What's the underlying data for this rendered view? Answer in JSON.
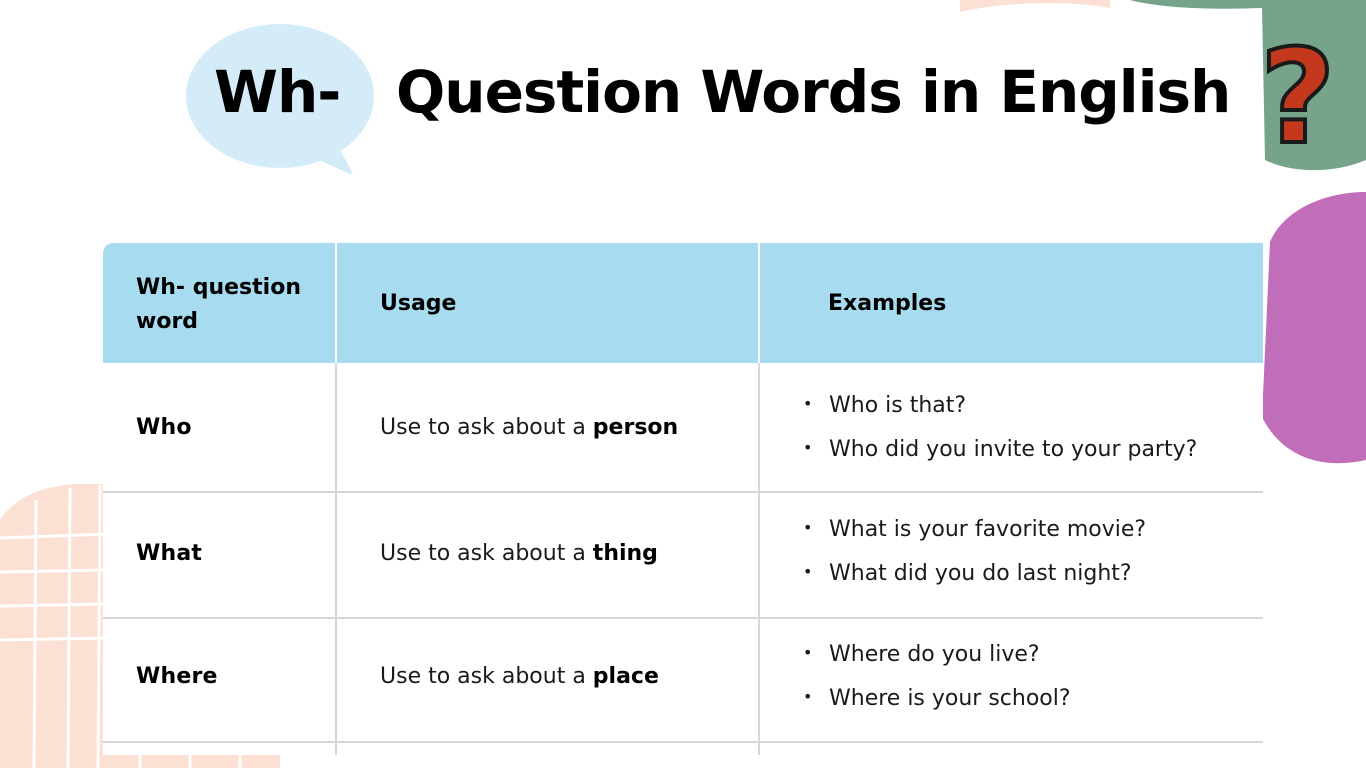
{
  "title": {
    "prefix": "Wh-",
    "main": "Question Words in English"
  },
  "decorations": {
    "question_mark": "?",
    "colors": {
      "bubble": "#d4ecf7",
      "green_blob": "#76a48a",
      "purple_blob": "#c06eba",
      "peach": "#fbe0d3",
      "question_mark": "#c4381e",
      "header": "#a7dcf0"
    }
  },
  "table": {
    "headers": {
      "word": "Wh- question word",
      "usage": "Usage",
      "examples": "Examples"
    },
    "rows": [
      {
        "word": "Who",
        "usage_prefix": "Use to ask about a ",
        "usage_keyword": "person",
        "examples": [
          "Who is that?",
          "Who did you invite to your party?"
        ]
      },
      {
        "word": "What",
        "usage_prefix": "Use to ask about a ",
        "usage_keyword": "thing",
        "examples": [
          "What is your favorite movie?",
          "What did you do last night?"
        ]
      },
      {
        "word": "Where",
        "usage_prefix": "Use to ask about a ",
        "usage_keyword": "place",
        "examples": [
          "Where do you live?",
          "Where is your school?"
        ]
      }
    ]
  }
}
